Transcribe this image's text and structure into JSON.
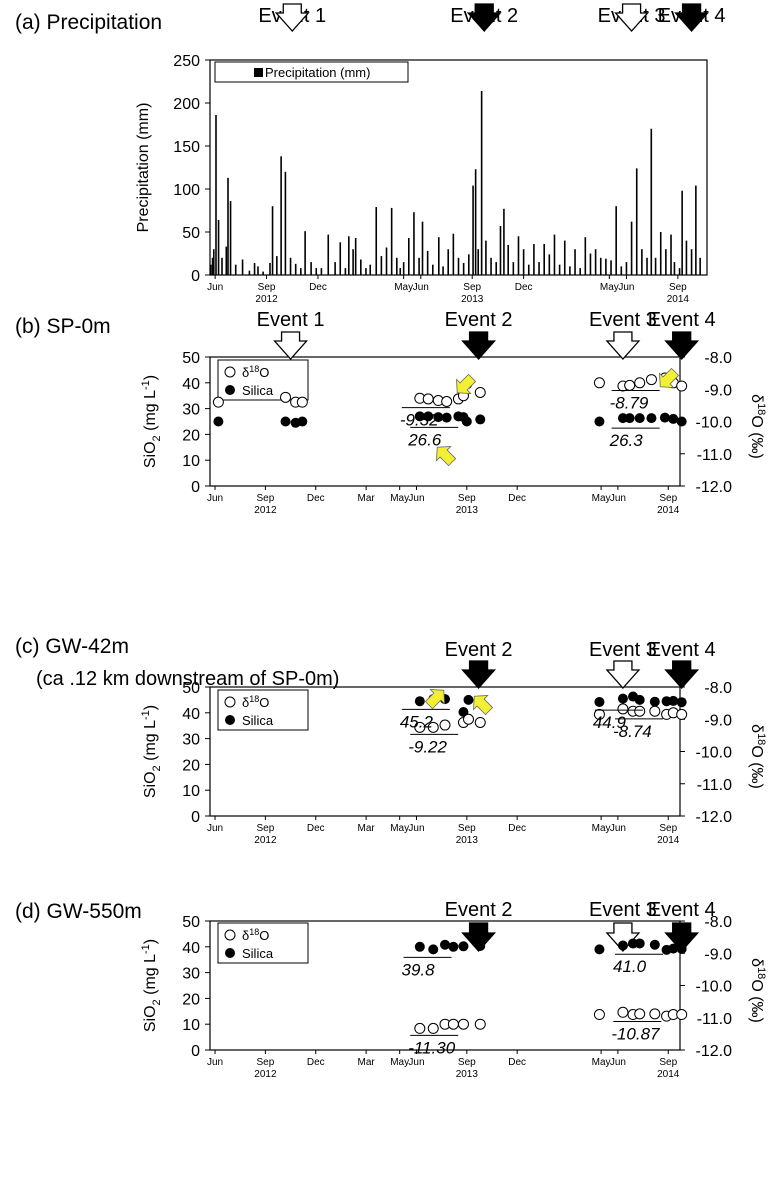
{
  "chart_data": [
    {
      "panel": "a",
      "type": "bar",
      "title": "(a) Precipitation",
      "ylabel": "Precipitation (mm)",
      "ylim": [
        0,
        250
      ],
      "yticks": [
        "0",
        "50",
        "100",
        "150",
        "200",
        "250"
      ],
      "xlim": [
        0,
        29
      ],
      "xticks": [
        {
          "m": 0.3,
          "label": "Jun"
        },
        {
          "m": 3.3,
          "label": "Sep",
          "year": "2012"
        },
        {
          "m": 6.3,
          "label": "Dec"
        },
        {
          "m": 11.3,
          "label": "May"
        },
        {
          "m": 12.3,
          "label": "Jun"
        },
        {
          "m": 15.3,
          "label": "Sep",
          "year": "2013"
        },
        {
          "m": 18.3,
          "label": "Dec"
        },
        {
          "m": 23.3,
          "label": "May"
        },
        {
          "m": 24.3,
          "label": "Jun"
        },
        {
          "m": 27.3,
          "label": "Sep",
          "year": "2014"
        }
      ],
      "legend": {
        "label": "Precipitation (mm)",
        "position": "top-left"
      },
      "series": [
        {
          "name": "Precipitation (mm)",
          "points": [
            [
              0.05,
              12
            ],
            [
              0.15,
              20
            ],
            [
              0.22,
              30
            ],
            [
              0.35,
              186
            ],
            [
              0.5,
              64
            ],
            [
              0.7,
              20
            ],
            [
              0.95,
              33
            ],
            [
              1.05,
              113
            ],
            [
              1.2,
              86
            ],
            [
              1.5,
              12
            ],
            [
              1.9,
              18
            ],
            [
              2.3,
              5
            ],
            [
              2.6,
              14
            ],
            [
              2.8,
              10
            ],
            [
              3.1,
              4
            ],
            [
              3.5,
              14
            ],
            [
              3.65,
              80
            ],
            [
              3.9,
              22
            ],
            [
              4.15,
              138
            ],
            [
              4.4,
              120
            ],
            [
              4.7,
              20
            ],
            [
              5.0,
              13
            ],
            [
              5.3,
              8
            ],
            [
              5.55,
              51
            ],
            [
              5.9,
              15
            ],
            [
              6.2,
              8
            ],
            [
              6.5,
              8
            ],
            [
              6.9,
              47
            ],
            [
              7.3,
              15
            ],
            [
              7.6,
              38
            ],
            [
              7.9,
              8
            ],
            [
              8.1,
              45
            ],
            [
              8.35,
              30
            ],
            [
              8.5,
              43
            ],
            [
              8.8,
              18
            ],
            [
              9.1,
              8
            ],
            [
              9.35,
              12
            ],
            [
              9.7,
              79
            ],
            [
              10.0,
              22
            ],
            [
              10.3,
              32
            ],
            [
              10.6,
              78
            ],
            [
              10.9,
              20
            ],
            [
              11.1,
              8
            ],
            [
              11.3,
              15
            ],
            [
              11.6,
              43
            ],
            [
              11.9,
              73
            ],
            [
              12.2,
              20
            ],
            [
              12.4,
              62
            ],
            [
              12.7,
              28
            ],
            [
              13.0,
              12
            ],
            [
              13.35,
              44
            ],
            [
              13.6,
              10
            ],
            [
              13.9,
              30
            ],
            [
              14.2,
              48
            ],
            [
              14.5,
              20
            ],
            [
              14.8,
              14
            ],
            [
              15.1,
              24
            ],
            [
              15.35,
              104
            ],
            [
              15.5,
              123
            ],
            [
              15.65,
              30
            ],
            [
              15.85,
              214
            ],
            [
              16.1,
              40
            ],
            [
              16.4,
              20
            ],
            [
              16.7,
              15
            ],
            [
              16.95,
              57
            ],
            [
              17.15,
              77
            ],
            [
              17.4,
              35
            ],
            [
              17.7,
              15
            ],
            [
              18.0,
              45
            ],
            [
              18.3,
              30
            ],
            [
              18.6,
              12
            ],
            [
              18.9,
              36
            ],
            [
              19.2,
              15
            ],
            [
              19.5,
              36
            ],
            [
              19.8,
              24
            ],
            [
              20.1,
              47
            ],
            [
              20.4,
              12
            ],
            [
              20.7,
              40
            ],
            [
              21.0,
              10
            ],
            [
              21.3,
              30
            ],
            [
              21.6,
              8
            ],
            [
              21.9,
              44
            ],
            [
              22.2,
              25
            ],
            [
              22.5,
              30
            ],
            [
              22.8,
              20
            ],
            [
              23.1,
              19
            ],
            [
              23.4,
              17
            ],
            [
              23.7,
              80
            ],
            [
              24.0,
              10
            ],
            [
              24.3,
              15
            ],
            [
              24.6,
              62
            ],
            [
              24.9,
              124
            ],
            [
              25.2,
              30
            ],
            [
              25.5,
              20
            ],
            [
              25.75,
              170
            ],
            [
              26.0,
              20
            ],
            [
              26.3,
              50
            ],
            [
              26.6,
              30
            ],
            [
              26.9,
              47
            ],
            [
              27.1,
              15
            ],
            [
              27.4,
              8
            ],
            [
              27.55,
              98
            ],
            [
              27.8,
              40
            ],
            [
              28.1,
              30
            ],
            [
              28.35,
              104
            ],
            [
              28.6,
              20
            ]
          ]
        }
      ],
      "events": [
        {
          "label": "Event 1",
          "x": 4.8,
          "fill": "white"
        },
        {
          "label": "Event 2",
          "x": 16.0,
          "fill": "black"
        },
        {
          "label": "Event 3",
          "x": 24.6,
          "fill": "white"
        },
        {
          "label": "Event 4",
          "x": 28.1,
          "fill": "black"
        }
      ]
    },
    {
      "panel": "b",
      "type": "scatter",
      "title": "(b) SP-0m",
      "ylabel": "SiO2 (mg L-1)",
      "y2label": "δ18O (‰)",
      "ylim": [
        0,
        50
      ],
      "y2lim": [
        -12.0,
        -8.0
      ],
      "yticks": [
        "0",
        "10",
        "20",
        "30",
        "40",
        "50"
      ],
      "y2ticks": [
        "-8.0",
        "-9.0",
        "-10.0",
        "-11.0",
        "-12.0"
      ],
      "xlim": [
        0,
        28
      ],
      "xticks": [
        {
          "m": 0.3,
          "label": "Jun"
        },
        {
          "m": 3.3,
          "label": "Sep",
          "year": "2012"
        },
        {
          "m": 6.3,
          "label": "Dec"
        },
        {
          "m": 9.3,
          "label": "Mar"
        },
        {
          "m": 11.3,
          "label": "May"
        },
        {
          "m": 12.3,
          "label": "Jun"
        },
        {
          "m": 15.3,
          "label": "Sep",
          "year": "2013"
        },
        {
          "m": 18.3,
          "label": "Dec"
        },
        {
          "m": 23.3,
          "label": "May"
        },
        {
          "m": 24.3,
          "label": "Jun"
        },
        {
          "m": 27.3,
          "label": "Sep",
          "year": "2014"
        }
      ],
      "legend": {
        "position": "top-left",
        "entries": [
          "δ",
          "18",
          "O",
          "Silica"
        ]
      },
      "series": [
        {
          "name": "δ18O",
          "marker": "open-circle",
          "x": [
            0.5,
            4.5,
            5.1,
            5.5,
            12.5,
            13.0,
            13.6,
            14.1,
            14.8,
            15.1,
            15.3,
            16.1,
            23.2,
            24.6,
            25.0,
            25.6,
            26.3,
            27.1,
            27.6,
            28.1
          ],
          "y": [
            -9.4,
            -9.25,
            -9.4,
            -9.4,
            -9.28,
            -9.3,
            -9.35,
            -9.38,
            -9.3,
            -9.2,
            -8.83,
            -9.1,
            -8.8,
            -8.9,
            -8.88,
            -8.8,
            -8.7,
            -8.65,
            -8.8,
            -8.9
          ]
        },
        {
          "name": "Silica",
          "marker": "filled-circle",
          "x": [
            0.5,
            4.5,
            5.1,
            5.5,
            12.5,
            13.0,
            13.6,
            14.1,
            14.8,
            15.1,
            15.3,
            16.1,
            23.2,
            24.6,
            25.0,
            25.6,
            26.3,
            27.1,
            27.6,
            28.1
          ],
          "y": [
            25,
            25,
            24.5,
            25,
            27,
            27,
            26.7,
            26.5,
            27,
            26.7,
            25,
            25.8,
            25,
            26.3,
            26.3,
            26.3,
            26.3,
            26.5,
            26,
            25
          ]
        }
      ],
      "annotations": [
        {
          "text": "-9.32",
          "x": 12.5,
          "y": -9.32
        },
        {
          "text": "26.6",
          "x": 13.0,
          "y": 26.6
        },
        {
          "text": "-8.79",
          "x": 25.0,
          "y": -8.79
        },
        {
          "text": "26.3",
          "x": 25.0,
          "y": 26.3
        }
      ],
      "events": [
        {
          "label": "Event 1",
          "x": 4.8,
          "fill": "white"
        },
        {
          "label": "Event 2",
          "x": 16.0,
          "fill": "black"
        },
        {
          "label": "Event 3",
          "x": 24.6,
          "fill": "white"
        },
        {
          "label": "Event 4",
          "x": 28.1,
          "fill": "black"
        }
      ]
    },
    {
      "panel": "c",
      "type": "scatter",
      "title": "(c) GW-42m",
      "subtitle": "(ca .12 km downstream of SP-0m)",
      "ylabel": "SiO2 (mg L-1)",
      "y2label": "δ18O (‰)",
      "ylim": [
        0,
        50
      ],
      "y2lim": [
        -12.0,
        -8.0
      ],
      "yticks": [
        "0",
        "10",
        "20",
        "30",
        "40",
        "50"
      ],
      "y2ticks": [
        "-8.0",
        "-9.0",
        "-10.0",
        "-11.0",
        "-12.0"
      ],
      "xlim": [
        0,
        28
      ],
      "xticks": [
        {
          "m": 0.3,
          "label": "Jun"
        },
        {
          "m": 3.3,
          "label": "Sep",
          "year": "2012"
        },
        {
          "m": 6.3,
          "label": "Dec"
        },
        {
          "m": 9.3,
          "label": "Mar"
        },
        {
          "m": 11.3,
          "label": "May"
        },
        {
          "m": 12.3,
          "label": "Jun"
        },
        {
          "m": 15.3,
          "label": "Sep",
          "year": "2013"
        },
        {
          "m": 18.3,
          "label": "Dec"
        },
        {
          "m": 23.3,
          "label": "May"
        },
        {
          "m": 24.3,
          "label": "Jun"
        },
        {
          "m": 27.3,
          "label": "Sep",
          "year": "2014"
        }
      ],
      "legend": {
        "position": "top-left",
        "entries": [
          "δ",
          "18",
          "O",
          "Silica"
        ]
      },
      "series": [
        {
          "name": "δ18O",
          "marker": "open-circle",
          "x": [
            12.5,
            13.3,
            14.0,
            15.1,
            15.4,
            16.1,
            23.2,
            24.6,
            25.2,
            25.6,
            26.5,
            27.2,
            27.6,
            28.1
          ],
          "y": [
            -9.25,
            -9.25,
            -9.18,
            -9.1,
            -9.0,
            -9.1,
            -8.85,
            -8.68,
            -8.75,
            -8.75,
            -8.75,
            -8.85,
            -8.8,
            -8.85
          ]
        },
        {
          "name": "Silica",
          "marker": "filled-circle",
          "x": [
            12.5,
            13.3,
            14.0,
            15.1,
            15.4,
            16.1,
            23.2,
            24.6,
            25.2,
            25.6,
            26.5,
            27.2,
            27.6,
            28.1
          ],
          "y": [
            44.5,
            45.3,
            45.3,
            40.3,
            45,
            44.7,
            44.2,
            45.5,
            46.3,
            45,
            44.3,
            44.5,
            44.6,
            44.1
          ]
        }
      ],
      "annotations": [
        {
          "text": "45.2",
          "x": 12.5,
          "y": 45.2
        },
        {
          "text": "-9.22",
          "x": 13.0,
          "y": -9.22
        },
        {
          "text": "44.9",
          "x": 24.0,
          "y": 44.9
        },
        {
          "text": "-8.74",
          "x": 25.2,
          "y": -8.74
        }
      ],
      "events": [
        {
          "label": "Event 2",
          "x": 16.0,
          "fill": "black"
        },
        {
          "label": "Event 3",
          "x": 24.6,
          "fill": "white"
        },
        {
          "label": "Event 4",
          "x": 28.1,
          "fill": "black"
        }
      ]
    },
    {
      "panel": "d",
      "type": "scatter",
      "title": "(d) GW-550m",
      "ylabel": "SiO2 (mg L-1)",
      "y2label": "δ18O (‰)",
      "ylim": [
        0,
        50
      ],
      "y2lim": [
        -12.0,
        -8.0
      ],
      "yticks": [
        "0",
        "10",
        "20",
        "30",
        "40",
        "50"
      ],
      "y2ticks": [
        "-8.0",
        "-9.0",
        "-10.0",
        "-11.0",
        "-12.0"
      ],
      "xlim": [
        0,
        28
      ],
      "xticks": [
        {
          "m": 0.3,
          "label": "Jun"
        },
        {
          "m": 3.3,
          "label": "Sep",
          "year": "2012"
        },
        {
          "m": 6.3,
          "label": "Dec"
        },
        {
          "m": 9.3,
          "label": "Mar"
        },
        {
          "m": 11.3,
          "label": "May"
        },
        {
          "m": 12.3,
          "label": "Jun"
        },
        {
          "m": 15.3,
          "label": "Sep",
          "year": "2013"
        },
        {
          "m": 18.3,
          "label": "Dec"
        },
        {
          "m": 23.3,
          "label": "May"
        },
        {
          "m": 24.3,
          "label": "Jun"
        },
        {
          "m": 27.3,
          "label": "Sep",
          "year": "2014"
        }
      ],
      "legend": {
        "position": "top-left",
        "entries": [
          "δ",
          "18",
          "O",
          "Silica"
        ]
      },
      "series": [
        {
          "name": "δ18O",
          "marker": "open-circle",
          "x": [
            12.5,
            13.3,
            14.0,
            14.5,
            15.1,
            16.1,
            23.2,
            24.6,
            25.2,
            25.6,
            26.5,
            27.2,
            27.6,
            28.1
          ],
          "y": [
            -11.33,
            -11.33,
            -11.2,
            -11.2,
            -11.2,
            -11.2,
            -10.9,
            -10.83,
            -10.9,
            -10.88,
            -10.88,
            -10.95,
            -10.9,
            -10.9
          ]
        },
        {
          "name": "Silica",
          "marker": "filled-circle",
          "x": [
            12.5,
            13.3,
            14.0,
            14.5,
            15.1,
            16.1,
            23.2,
            24.6,
            25.2,
            25.6,
            26.5,
            27.2,
            27.6,
            28.1
          ],
          "y": [
            40,
            39,
            40.8,
            40,
            40.2,
            40.3,
            39,
            40.5,
            41.3,
            41.3,
            40.8,
            38.8,
            39.3,
            39.2
          ]
        }
      ],
      "annotations": [
        {
          "text": "39.8",
          "x": 12.6,
          "y": 39.8
        },
        {
          "text": "-11.30",
          "x": 13.0,
          "y": -11.3
        },
        {
          "text": "41.0",
          "x": 25.2,
          "y": 41.0
        },
        {
          "text": "-10.87",
          "x": 25.1,
          "y": -10.87
        }
      ],
      "events": [
        {
          "label": "Event 2",
          "x": 16.0,
          "fill": "black"
        },
        {
          "label": "Event 3",
          "x": 24.6,
          "fill": "white"
        },
        {
          "label": "Event 4",
          "x": 28.1,
          "fill": "black"
        }
      ]
    }
  ]
}
